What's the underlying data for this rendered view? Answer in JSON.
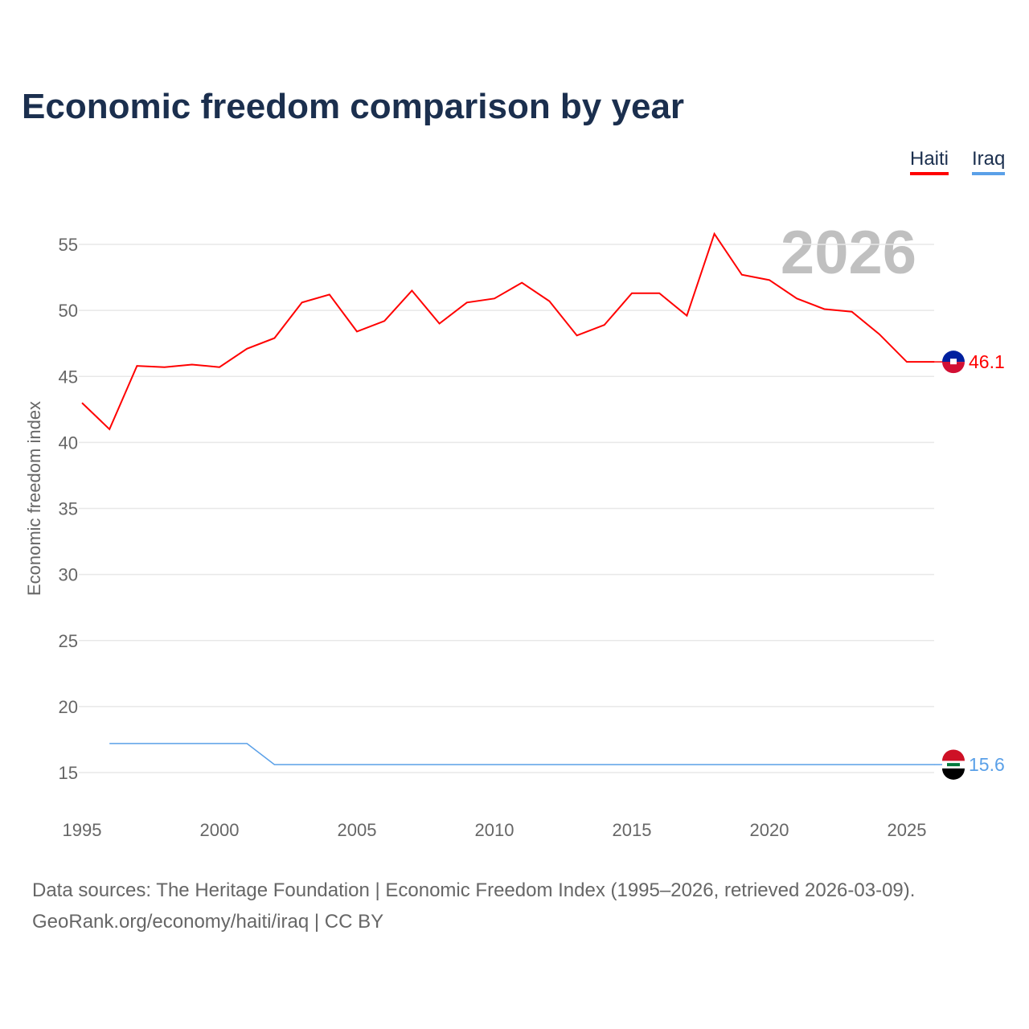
{
  "chart_data": {
    "type": "line",
    "title": "Economic freedom comparison by year",
    "ylabel": "Economic freedom index",
    "xlabel": "",
    "year_watermark": "2026",
    "xlim": [
      1995,
      2026
    ],
    "ylim": [
      13,
      57
    ],
    "xticks": [
      1995,
      2000,
      2005,
      2010,
      2015,
      2020,
      2025
    ],
    "yticks": [
      15,
      20,
      25,
      30,
      35,
      40,
      45,
      50,
      55
    ],
    "grid": true,
    "legend_placement": "top-right",
    "series": [
      {
        "name": "Haiti",
        "color": "#ff0000",
        "end_label": "46.1",
        "x": [
          1995,
          1996,
          1997,
          1998,
          1999,
          2000,
          2001,
          2002,
          2003,
          2004,
          2005,
          2006,
          2007,
          2008,
          2009,
          2010,
          2011,
          2012,
          2013,
          2014,
          2015,
          2016,
          2017,
          2018,
          2019,
          2020,
          2021,
          2022,
          2023,
          2024,
          2025,
          2026
        ],
        "values": [
          43.0,
          41.0,
          45.8,
          45.7,
          45.9,
          45.7,
          47.1,
          47.9,
          50.6,
          51.2,
          48.4,
          49.2,
          51.5,
          49.0,
          50.6,
          50.9,
          52.1,
          50.7,
          48.1,
          48.9,
          51.3,
          51.3,
          49.6,
          55.8,
          52.7,
          52.3,
          50.9,
          50.1,
          49.9,
          48.2,
          46.1,
          46.1
        ]
      },
      {
        "name": "Iraq",
        "color": "#5aa0e8",
        "end_label": "15.6",
        "x": [
          1996,
          1997,
          1998,
          1999,
          2000,
          2001,
          2002,
          2003,
          2004,
          2005,
          2006,
          2007,
          2008,
          2009,
          2010,
          2011,
          2012,
          2013,
          2014,
          2015,
          2016,
          2017,
          2018,
          2019,
          2020,
          2021,
          2022,
          2023,
          2024,
          2025,
          2026
        ],
        "values": [
          17.2,
          17.2,
          17.2,
          17.2,
          17.2,
          17.2,
          15.6,
          15.6,
          15.6,
          15.6,
          15.6,
          15.6,
          15.6,
          15.6,
          15.6,
          15.6,
          15.6,
          15.6,
          15.6,
          15.6,
          15.6,
          15.6,
          15.6,
          15.6,
          15.6,
          15.6,
          15.6,
          15.6,
          15.6,
          15.6,
          15.6
        ]
      }
    ]
  },
  "source_line1": "Data sources: The Heritage Foundation | Economic Freedom Index (1995–2026, retrieved 2026-03-09).",
  "source_line2": "GeoRank.org/economy/haiti/iraq | CC BY"
}
